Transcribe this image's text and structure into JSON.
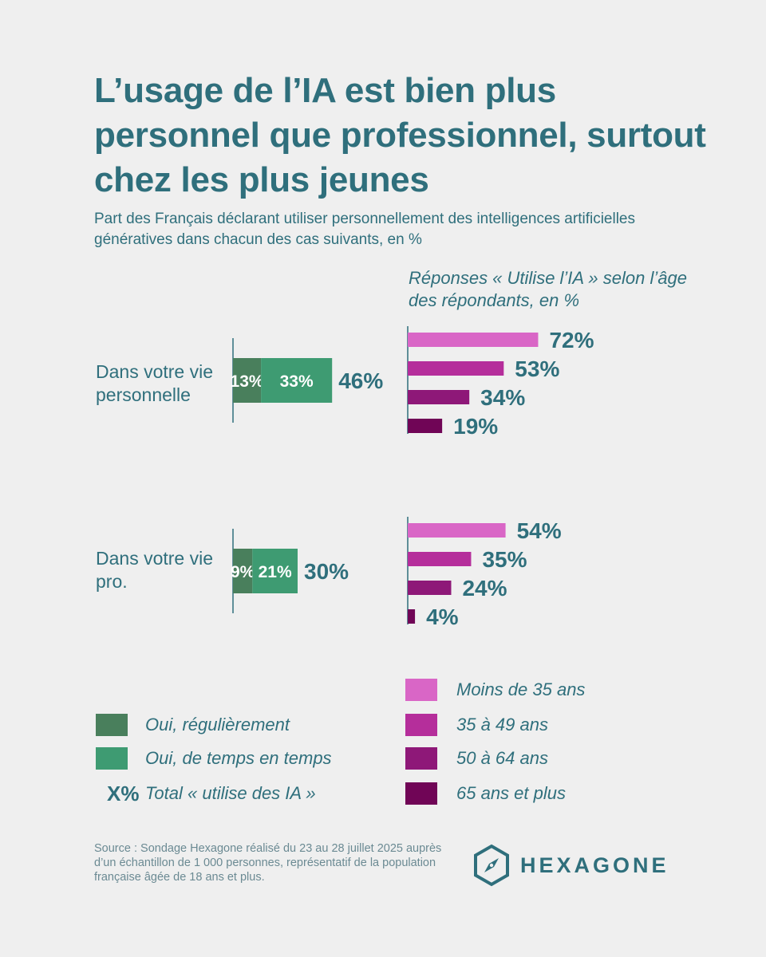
{
  "title": "L’usage de l’IA est bien plus personnel que professionnel, surtout chez les plus jeunes",
  "subtitle": "Part des Français déclarant utiliser personnellement des intelligences artificielles génératives dans chacun des cas suivants, en %",
  "age_panel_title": "Réponses « Utilise l’IA » selon l’âge des répondants, en %",
  "chart_data": [
    {
      "type": "bar",
      "orientation": "horizontal",
      "stacked": true,
      "categories": [
        "Dans votre vie personnelle",
        "Dans votre vie pro."
      ],
      "series": [
        {
          "name": "Oui, régulièrement",
          "values": [
            13,
            9
          ],
          "labels": [
            "13%",
            "9%"
          ]
        },
        {
          "name": "Oui, de temps en temps",
          "values": [
            33,
            21
          ],
          "labels": [
            "33%",
            "21%"
          ]
        }
      ],
      "totals": [
        46,
        30
      ],
      "total_labels": [
        "46%",
        "30%"
      ]
    },
    {
      "type": "bar",
      "orientation": "horizontal",
      "title": "Réponses « Utilise l’IA » selon l’âge des répondants, en %",
      "categories": [
        "Dans votre vie personnelle",
        "Dans votre vie pro."
      ],
      "series": [
        {
          "name": "Moins de 35 ans",
          "values": [
            72,
            54
          ],
          "labels": [
            "72%",
            "54%"
          ]
        },
        {
          "name": "35 à 49 ans",
          "values": [
            53,
            35
          ],
          "labels": [
            "53%",
            "35%"
          ]
        },
        {
          "name": "50 à 64 ans",
          "values": [
            34,
            24
          ],
          "labels": [
            "34%",
            "24%"
          ]
        },
        {
          "name": "65 ans et plus",
          "values": [
            19,
            4
          ],
          "labels": [
            "19%",
            "4%"
          ]
        }
      ]
    }
  ],
  "colors": {
    "text": "#2f6f7c",
    "regular": "#497f5c",
    "sometimes": "#3e9b72",
    "age": [
      "#d966c6",
      "#b52e9b",
      "#8e1878",
      "#700556"
    ]
  },
  "legend": {
    "regular": "Oui, régulièrement",
    "sometimes": "Oui, de temps en temps",
    "total_marker": "X%",
    "total_label": "Total « utilise des IA »",
    "age": [
      "Moins de 35 ans",
      "35 à 49 ans",
      "50 à 64 ans",
      "65 ans et plus"
    ]
  },
  "row_labels": [
    "Dans votre vie personnelle",
    "Dans votre vie pro."
  ],
  "source": "Source : Sondage Hexagone réalisé du 23 au 28 juillet 2025 auprès d’un échantillon de 1 000 personnes, représentatif de la population française âgée de 18 ans et plus.",
  "brand": {
    "name": "HEXAGONE",
    "icon": "hexagon-compass-icon"
  }
}
